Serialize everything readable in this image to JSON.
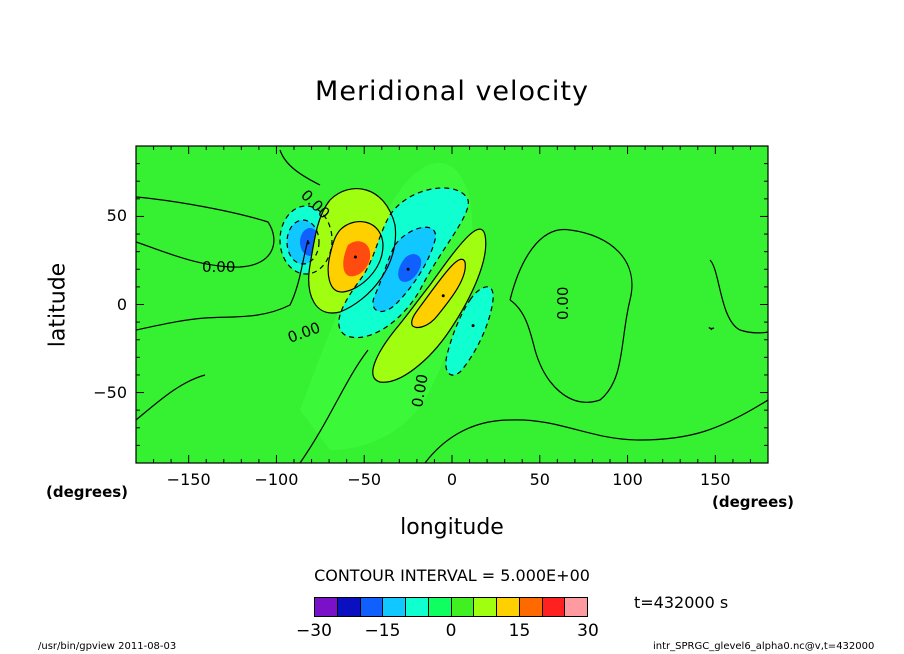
{
  "chart_data": {
    "type": "heatmap",
    "title": "Meridional velocity",
    "xlabel": "longitude",
    "ylabel": "latitude",
    "x_unit": "(degrees)",
    "y_unit": "(degrees)",
    "xlim": [
      -180,
      180
    ],
    "ylim": [
      -90,
      90
    ],
    "x_ticks": [
      -150,
      -100,
      -50,
      0,
      50,
      100,
      150
    ],
    "y_ticks": [
      50,
      0,
      -50
    ],
    "contour_interval_text": "CONTOUR INTERVAL = 5.000E+00",
    "contour_labels": [
      "0.00",
      "0.00",
      "0.00",
      "0.00",
      "0.00"
    ],
    "time_text": "t=432000 s",
    "colorbar": {
      "levels": [
        -30,
        -25,
        -20,
        -15,
        -10,
        -5,
        0,
        5,
        10,
        15,
        20,
        25,
        30
      ],
      "tick_labels": [
        "−30",
        "−15",
        "0",
        "15",
        "30"
      ],
      "tick_values": [
        -30,
        -15,
        0,
        15,
        30
      ],
      "colors": [
        "#7a10c8",
        "#0a10c0",
        "#1060ff",
        "#10c8ff",
        "#10ffd0",
        "#10ff60",
        "#40f020",
        "#a0ff10",
        "#ffd000",
        "#ff6a00",
        "#ff2020",
        "#ff9aa0"
      ]
    },
    "features": [
      {
        "kind": "min",
        "lon": -82,
        "lat": 35,
        "value": -22
      },
      {
        "kind": "max",
        "lon": -55,
        "lat": 27,
        "value": 20
      },
      {
        "kind": "min",
        "lon": -25,
        "lat": 20,
        "value": -20
      },
      {
        "kind": "max",
        "lon": -5,
        "lat": 5,
        "value": 12
      },
      {
        "kind": "min",
        "lon": 12,
        "lat": -12,
        "value": -7
      }
    ]
  },
  "footer": {
    "left": "/usr/bin/gpview   2011-08-03",
    "right": "intr_SPRGC_glevel6_alpha0.nc@v,t=432000"
  },
  "colors": {
    "background_field": "#36f032",
    "frame": "#000000"
  }
}
